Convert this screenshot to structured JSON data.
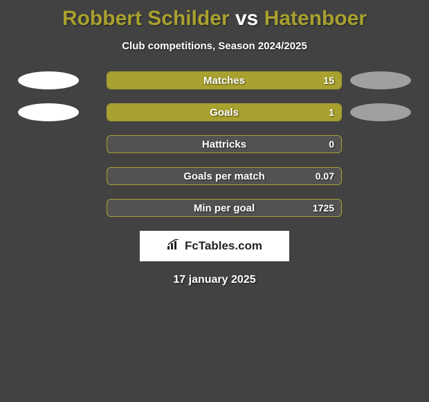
{
  "background_color": "#424242",
  "title": {
    "player1": "Robbert Schilder",
    "vs": "vs",
    "player2": "Hatenboer",
    "player1_color": "#a9a12f",
    "vs_color": "#ffffff",
    "player2_color": "#a9a12f"
  },
  "subtitle": "Club competitions, Season 2024/2025",
  "ellipse_left_color": "#ffffff",
  "ellipse_right_color": "#a0a0a0",
  "bar_track_color": "#525252",
  "bar_border_color": "#a9a12f",
  "bar_fill_color": "#a9a12f",
  "stats": [
    {
      "label": "Matches",
      "value": "15",
      "fill_pct": 100,
      "show_left_ellipse": true,
      "show_right_ellipse": true
    },
    {
      "label": "Goals",
      "value": "1",
      "fill_pct": 100,
      "show_left_ellipse": true,
      "show_right_ellipse": true
    },
    {
      "label": "Hattricks",
      "value": "0",
      "fill_pct": 0,
      "show_left_ellipse": false,
      "show_right_ellipse": false
    },
    {
      "label": "Goals per match",
      "value": "0.07",
      "fill_pct": 0,
      "show_left_ellipse": false,
      "show_right_ellipse": false
    },
    {
      "label": "Min per goal",
      "value": "1725",
      "fill_pct": 0,
      "show_left_ellipse": false,
      "show_right_ellipse": false
    }
  ],
  "logo": {
    "text": "FcTables.com",
    "icon": "📊"
  },
  "date": "17 january 2025"
}
